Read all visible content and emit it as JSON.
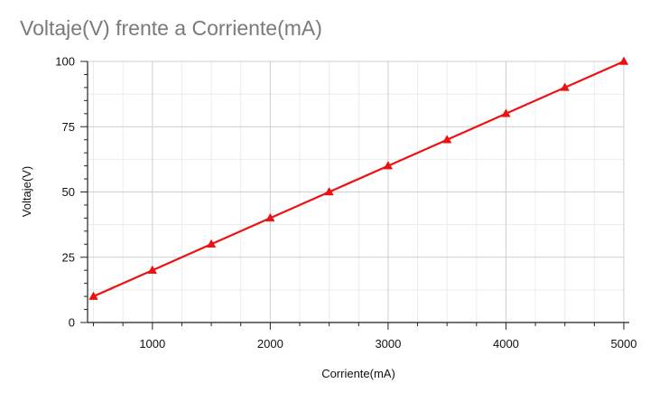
{
  "chart_data": {
    "type": "line",
    "title": "Voltaje(V) frente a Corriente(mA)",
    "xlabel": "Corriente(mA)",
    "ylabel": "Voltaje(V)",
    "xlim": [
      450,
      5000
    ],
    "ylim": [
      0,
      100
    ],
    "x_ticks": [
      "1000",
      "2000",
      "3000",
      "4000",
      "5000"
    ],
    "y_ticks": [
      "0",
      "25",
      "50",
      "75",
      "100"
    ],
    "grid": true,
    "legend": "none",
    "series": [
      {
        "color": "#ee1111",
        "marker": "triangle",
        "x": [
          500,
          1000,
          1500,
          2000,
          2500,
          3000,
          3500,
          4000,
          4500,
          5000
        ],
        "y": [
          10,
          20,
          30,
          40,
          50,
          60,
          70,
          80,
          90,
          100
        ]
      }
    ]
  }
}
